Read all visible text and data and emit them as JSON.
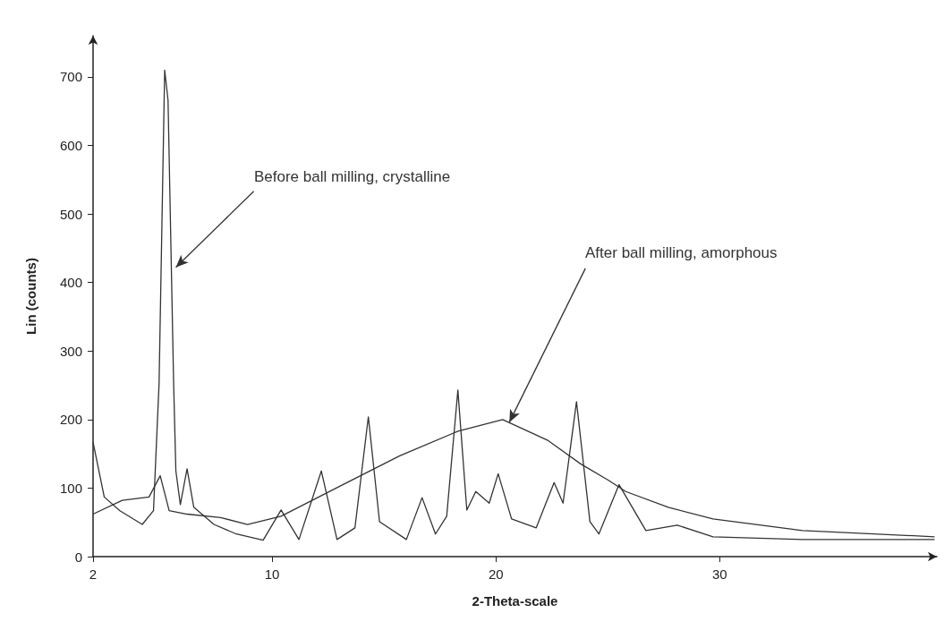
{
  "chart_data": {
    "type": "line",
    "xlabel": "2-Theta-scale",
    "ylabel": "Lin (counts)",
    "xlim": [
      2,
      39.7
    ],
    "xticks": [
      2,
      10,
      20,
      30
    ],
    "ylim": [
      0,
      760
    ],
    "yticks": [
      0,
      100,
      200,
      300,
      400,
      500,
      600,
      700
    ],
    "grid": false,
    "marker": "none",
    "line_style": "solid",
    "series": [
      {
        "color": "#333333",
        "x": [
          2.0,
          2.5,
          3.2,
          4.2,
          4.7,
          4.95,
          5.2,
          5.35,
          5.6,
          5.7,
          5.9,
          6.2,
          6.5,
          7.4,
          8.4,
          9.6,
          10.4,
          11.2,
          12.2,
          12.9,
          13.7,
          14.3,
          14.8,
          16.0,
          16.7,
          17.3,
          17.8,
          18.3,
          18.7,
          19.1,
          19.7,
          20.1,
          20.7,
          21.8,
          22.6,
          23.0,
          23.6,
          24.2,
          24.6,
          25.5,
          26.7,
          28.1,
          29.7,
          33.7,
          39.6
        ],
        "values": [
          167,
          87,
          67,
          47,
          67,
          253,
          710,
          666,
          253,
          125,
          76,
          128,
          72,
          47,
          33,
          24,
          68,
          25,
          125,
          25,
          42,
          204,
          51,
          25,
          86,
          33,
          59,
          243,
          68,
          95,
          78,
          121,
          55,
          42,
          108,
          78,
          226,
          51,
          33,
          105,
          38,
          46,
          29,
          25,
          25
        ]
      },
      {
        "color": "#333333",
        "x": [
          2.0,
          3.3,
          4.5,
          5.0,
          5.4,
          6.2,
          7.7,
          8.9,
          10.4,
          13.1,
          15.7,
          18.3,
          20.3,
          22.3,
          23.8,
          25.0,
          25.8,
          27.7,
          29.7,
          33.7,
          39.6
        ],
        "values": [
          62,
          82,
          87,
          118,
          67,
          62,
          57,
          47,
          59,
          104,
          147,
          183,
          200,
          170,
          135,
          112,
          95,
          72,
          55,
          38,
          29
        ]
      }
    ],
    "annotations": [
      {
        "text": "Before ball milling, crystalline",
        "x": 5.7,
        "y": 422
      },
      {
        "text": "After ball milling, amorphous",
        "x": 20.6,
        "y": 196
      }
    ]
  }
}
